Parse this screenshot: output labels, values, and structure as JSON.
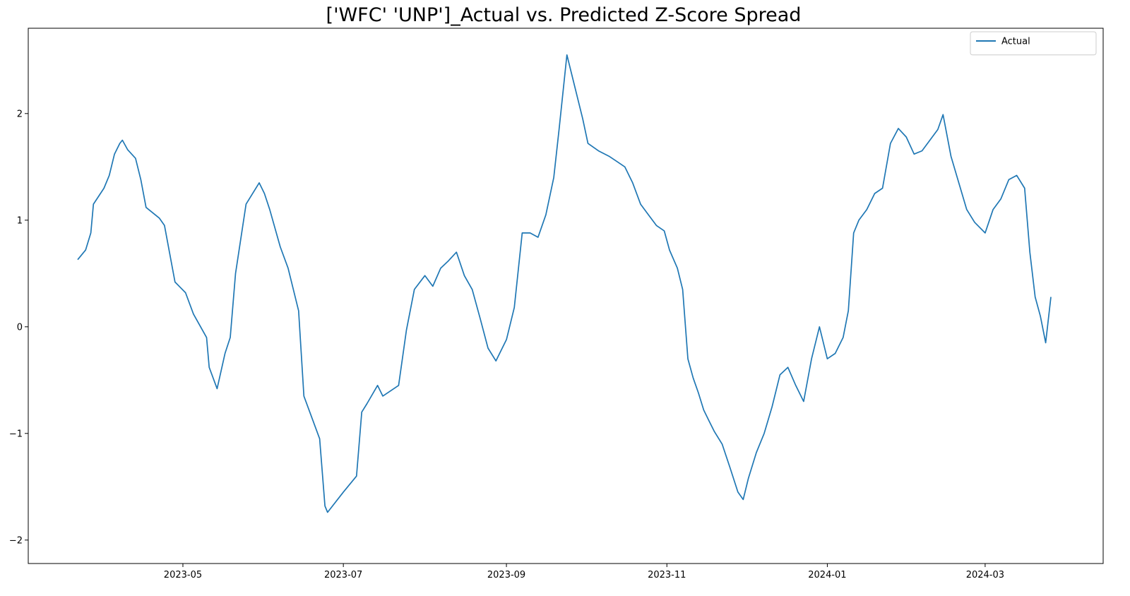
{
  "chart_data": {
    "type": "line",
    "title": "['WFC' 'UNP']_Actual vs. Predicted Z-Score Spread",
    "xlabel": "",
    "ylabel": "",
    "x_range": [
      "2023-03-22",
      "2024-03-26"
    ],
    "ylim": [
      -2.22,
      2.8
    ],
    "x_ticks": [
      "2023-05",
      "2023-07",
      "2023-09",
      "2023-11",
      "2024-01",
      "2024-03"
    ],
    "x_tick_dates": [
      "2023-05-01",
      "2023-07-01",
      "2023-09-01",
      "2023-11-01",
      "2024-01-01",
      "2024-03-01"
    ],
    "y_ticks": [
      -2,
      -1,
      0,
      1,
      2
    ],
    "y_tick_labels": [
      "−2",
      "−1",
      "0",
      "1",
      "2"
    ],
    "grid": false,
    "legend_position": "top-right",
    "series": [
      {
        "name": "Actual",
        "color": "#1f77b4",
        "points": [
          [
            "2023-03-22",
            0.63
          ],
          [
            "2023-03-25",
            0.72
          ],
          [
            "2023-03-27",
            0.88
          ],
          [
            "2023-03-28",
            1.15
          ],
          [
            "2023-04-01",
            1.3
          ],
          [
            "2023-04-03",
            1.42
          ],
          [
            "2023-04-05",
            1.62
          ],
          [
            "2023-04-07",
            1.72
          ],
          [
            "2023-04-08",
            1.75
          ],
          [
            "2023-04-10",
            1.66
          ],
          [
            "2023-04-13",
            1.58
          ],
          [
            "2023-04-15",
            1.38
          ],
          [
            "2023-04-17",
            1.12
          ],
          [
            "2023-04-22",
            1.02
          ],
          [
            "2023-04-24",
            0.95
          ],
          [
            "2023-04-28",
            0.42
          ],
          [
            "2023-05-02",
            0.32
          ],
          [
            "2023-05-05",
            0.12
          ],
          [
            "2023-05-10",
            -0.1
          ],
          [
            "2023-05-11",
            -0.38
          ],
          [
            "2023-05-14",
            -0.58
          ],
          [
            "2023-05-17",
            -0.25
          ],
          [
            "2023-05-19",
            -0.1
          ],
          [
            "2023-05-21",
            0.5
          ],
          [
            "2023-05-25",
            1.15
          ],
          [
            "2023-05-30",
            1.35
          ],
          [
            "2023-06-01",
            1.25
          ],
          [
            "2023-06-03",
            1.1
          ],
          [
            "2023-06-07",
            0.75
          ],
          [
            "2023-06-10",
            0.55
          ],
          [
            "2023-06-14",
            0.15
          ],
          [
            "2023-06-16",
            -0.65
          ],
          [
            "2023-06-22",
            -1.05
          ],
          [
            "2023-06-24",
            -1.68
          ],
          [
            "2023-06-25",
            -1.74
          ],
          [
            "2023-07-01",
            -1.55
          ],
          [
            "2023-07-06",
            -1.4
          ],
          [
            "2023-07-08",
            -0.8
          ],
          [
            "2023-07-10",
            -0.72
          ],
          [
            "2023-07-14",
            -0.55
          ],
          [
            "2023-07-16",
            -0.65
          ],
          [
            "2023-07-22",
            -0.55
          ],
          [
            "2023-07-25",
            -0.03
          ],
          [
            "2023-07-28",
            0.35
          ],
          [
            "2023-08-01",
            0.48
          ],
          [
            "2023-08-04",
            0.38
          ],
          [
            "2023-08-07",
            0.55
          ],
          [
            "2023-08-10",
            0.62
          ],
          [
            "2023-08-13",
            0.7
          ],
          [
            "2023-08-16",
            0.48
          ],
          [
            "2023-08-19",
            0.35
          ],
          [
            "2023-08-22",
            0.08
          ],
          [
            "2023-08-25",
            -0.2
          ],
          [
            "2023-08-28",
            -0.32
          ],
          [
            "2023-09-01",
            -0.12
          ],
          [
            "2023-09-04",
            0.18
          ],
          [
            "2023-09-07",
            0.88
          ],
          [
            "2023-09-10",
            0.88
          ],
          [
            "2023-09-13",
            0.84
          ],
          [
            "2023-09-16",
            1.05
          ],
          [
            "2023-09-19",
            1.4
          ],
          [
            "2023-09-21",
            1.85
          ],
          [
            "2023-09-24",
            2.55
          ],
          [
            "2023-09-27",
            2.25
          ],
          [
            "2023-09-30",
            1.95
          ],
          [
            "2023-10-02",
            1.72
          ],
          [
            "2023-10-06",
            1.65
          ],
          [
            "2023-10-10",
            1.6
          ],
          [
            "2023-10-13",
            1.55
          ],
          [
            "2023-10-16",
            1.5
          ],
          [
            "2023-10-19",
            1.35
          ],
          [
            "2023-10-22",
            1.15
          ],
          [
            "2023-10-25",
            1.05
          ],
          [
            "2023-10-28",
            0.95
          ],
          [
            "2023-10-31",
            0.9
          ],
          [
            "2023-11-02",
            0.72
          ],
          [
            "2023-11-05",
            0.55
          ],
          [
            "2023-11-07",
            0.35
          ],
          [
            "2023-11-09",
            -0.3
          ],
          [
            "2023-11-11",
            -0.48
          ],
          [
            "2023-11-13",
            -0.62
          ],
          [
            "2023-11-15",
            -0.78
          ],
          [
            "2023-11-17",
            -0.88
          ],
          [
            "2023-11-19",
            -0.98
          ],
          [
            "2023-11-22",
            -1.1
          ],
          [
            "2023-11-25",
            -1.32
          ],
          [
            "2023-11-28",
            -1.55
          ],
          [
            "2023-11-30",
            -1.62
          ],
          [
            "2023-12-02",
            -1.42
          ],
          [
            "2023-12-05",
            -1.18
          ],
          [
            "2023-12-08",
            -1.0
          ],
          [
            "2023-12-11",
            -0.75
          ],
          [
            "2023-12-14",
            -0.45
          ],
          [
            "2023-12-17",
            -0.38
          ],
          [
            "2023-12-20",
            -0.55
          ],
          [
            "2023-12-23",
            -0.7
          ],
          [
            "2023-12-26",
            -0.3
          ],
          [
            "2023-12-29",
            0.0
          ],
          [
            "2024-01-01",
            -0.3
          ],
          [
            "2024-01-04",
            -0.25
          ],
          [
            "2024-01-07",
            -0.1
          ],
          [
            "2024-01-09",
            0.15
          ],
          [
            "2024-01-11",
            0.88
          ],
          [
            "2024-01-13",
            1.0
          ],
          [
            "2024-01-16",
            1.1
          ],
          [
            "2024-01-19",
            1.25
          ],
          [
            "2024-01-22",
            1.3
          ],
          [
            "2024-01-25",
            1.72
          ],
          [
            "2024-01-28",
            1.86
          ],
          [
            "2024-01-31",
            1.78
          ],
          [
            "2024-02-03",
            1.62
          ],
          [
            "2024-02-06",
            1.65
          ],
          [
            "2024-02-09",
            1.75
          ],
          [
            "2024-02-12",
            1.85
          ],
          [
            "2024-02-14",
            1.99
          ],
          [
            "2024-02-17",
            1.6
          ],
          [
            "2024-02-20",
            1.35
          ],
          [
            "2024-02-23",
            1.1
          ],
          [
            "2024-02-26",
            0.98
          ],
          [
            "2024-03-01",
            0.88
          ],
          [
            "2024-03-04",
            1.1
          ],
          [
            "2024-03-07",
            1.2
          ],
          [
            "2024-03-10",
            1.38
          ],
          [
            "2024-03-13",
            1.42
          ],
          [
            "2024-03-16",
            1.3
          ],
          [
            "2024-03-18",
            0.7
          ],
          [
            "2024-03-20",
            0.28
          ],
          [
            "2024-03-22",
            0.1
          ],
          [
            "2024-03-24",
            -0.15
          ],
          [
            "2024-03-26",
            0.28
          ]
        ]
      }
    ]
  }
}
